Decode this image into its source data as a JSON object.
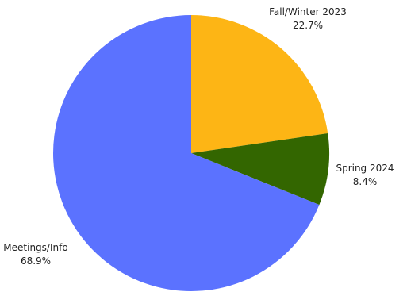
{
  "chart_data": {
    "type": "pie",
    "slices": [
      {
        "label": "Fall/Winter 2023",
        "value": 22.7,
        "pct_label": "22.7%",
        "color": "#FDB515"
      },
      {
        "label": "Spring 2024",
        "value": 8.4,
        "pct_label": "8.4%",
        "color": "#336600"
      },
      {
        "label": "Meetings/Info",
        "value": 68.9,
        "pct_label": "68.9%",
        "color": "#5B72FF"
      }
    ],
    "start": "12 o'clock",
    "direction": "clockwise",
    "legend": "none"
  }
}
